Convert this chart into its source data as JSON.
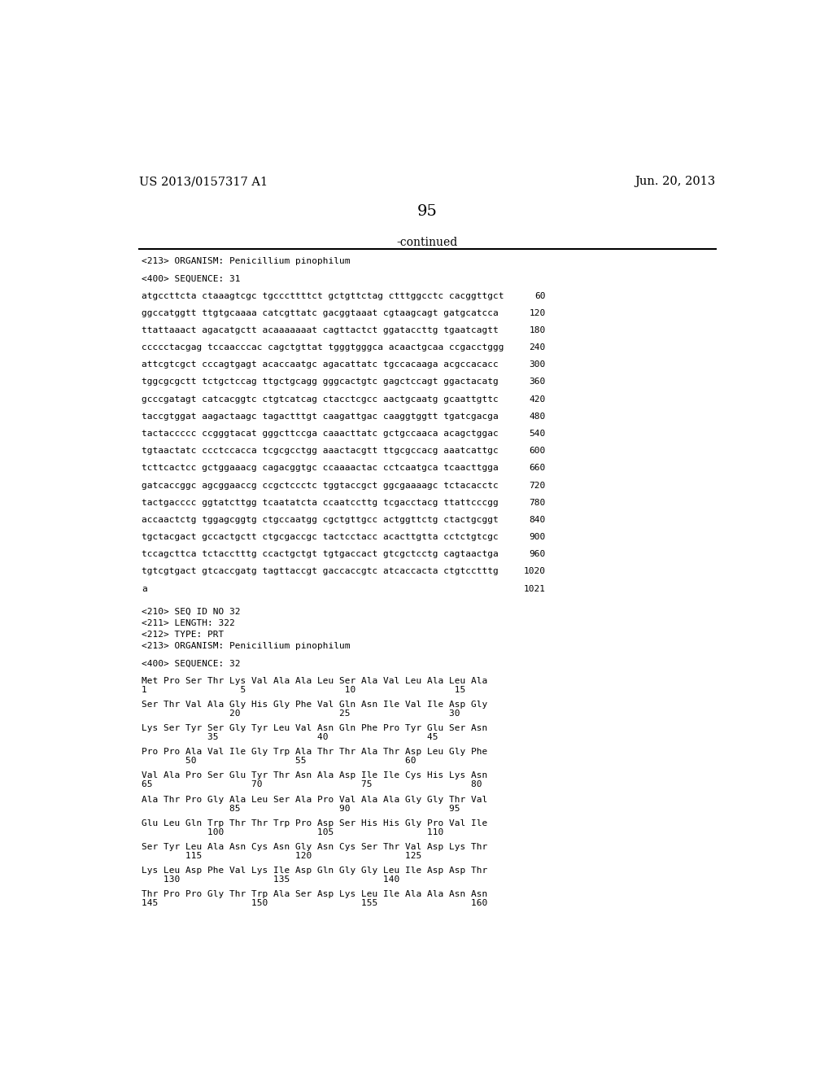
{
  "header_left": "US 2013/0157317 A1",
  "header_right": "Jun. 20, 2013",
  "page_number": "95",
  "continued_text": "-continued",
  "bg_color": "#ffffff",
  "text_color": "#000000",
  "sections": [
    {
      "type": "label",
      "text": "<213> ORGANISM: Penicillium pinophilum"
    },
    {
      "type": "blank"
    },
    {
      "type": "label",
      "text": "<400> SEQUENCE: 31"
    },
    {
      "type": "blank"
    },
    {
      "type": "seq_line",
      "seq": "atgccttcta ctaaagtcgc tgcccttttct gctgttctag ctttggcctc cacggttgct",
      "num": "60"
    },
    {
      "type": "blank"
    },
    {
      "type": "seq_line",
      "seq": "ggccatggtt ttgtgcaaaa catcgttatc gacggtaaat cgtaagcagt gatgcatcca",
      "num": "120"
    },
    {
      "type": "blank"
    },
    {
      "type": "seq_line",
      "seq": "ttattaaact agacatgctt acaaaaaaat cagttactct ggataccttg tgaatcagtt",
      "num": "180"
    },
    {
      "type": "blank"
    },
    {
      "type": "seq_line",
      "seq": "ccccctacgag tccaacccac cagctgttat tgggtgggca acaactgcaa ccgacctggg",
      "num": "240"
    },
    {
      "type": "blank"
    },
    {
      "type": "seq_line",
      "seq": "attcgtcgct cccagtgagt acaccaatgc agacattatc tgccacaaga acgccacacc",
      "num": "300"
    },
    {
      "type": "blank"
    },
    {
      "type": "seq_line",
      "seq": "tggcgcgctt tctgctccag ttgctgcagg gggcactgtc gagctccagt ggactacatg",
      "num": "360"
    },
    {
      "type": "blank"
    },
    {
      "type": "seq_line",
      "seq": "gcccgatagt catcacggtc ctgtcatcag ctacctcgcc aactgcaatg gcaattgttc",
      "num": "420"
    },
    {
      "type": "blank"
    },
    {
      "type": "seq_line",
      "seq": "taccgtggat aagactaagc tagactttgt caagattgac caaggtggtt tgatcgacga",
      "num": "480"
    },
    {
      "type": "blank"
    },
    {
      "type": "seq_line",
      "seq": "tactaccccc ccgggtacat gggcttccga caaacttatc gctgccaaca acagctggac",
      "num": "540"
    },
    {
      "type": "blank"
    },
    {
      "type": "seq_line",
      "seq": "tgtaactatc ccctccacca tcgcgcctgg aaactacgtt ttgcgccacg aaatcattgc",
      "num": "600"
    },
    {
      "type": "blank"
    },
    {
      "type": "seq_line",
      "seq": "tcttcactcc gctggaaacg cagacggtgc ccaaaactac cctcaatgca tcaacttgga",
      "num": "660"
    },
    {
      "type": "blank"
    },
    {
      "type": "seq_line",
      "seq": "gatcaccggc agcggaaccg ccgctccctc tggtaccgct ggcgaaaagc tctacacctc",
      "num": "720"
    },
    {
      "type": "blank"
    },
    {
      "type": "seq_line",
      "seq": "tactgacccc ggtatcttgg tcaatatcta ccaatccttg tcgacctacg ttattcccgg",
      "num": "780"
    },
    {
      "type": "blank"
    },
    {
      "type": "seq_line",
      "seq": "accaactctg tggagcggtg ctgccaatgg cgctgttgcc actggttctg ctactgcggt",
      "num": "840"
    },
    {
      "type": "blank"
    },
    {
      "type": "seq_line",
      "seq": "tgctacgact gccactgctt ctgcgaccgc tactcctacc acacttgtta cctctgtcgc",
      "num": "900"
    },
    {
      "type": "blank"
    },
    {
      "type": "seq_line",
      "seq": "tccagcttca tctacctttg ccactgctgt tgtgaccact gtcgctcctg cagtaactga",
      "num": "960"
    },
    {
      "type": "blank"
    },
    {
      "type": "seq_line",
      "seq": "tgtcgtgact gtcaccgatg tagttaccgt gaccaccgtc atcaccacta ctgtcctttg",
      "num": "1020"
    },
    {
      "type": "blank"
    },
    {
      "type": "seq_line",
      "seq": "a",
      "num": "1021"
    },
    {
      "type": "blank"
    },
    {
      "type": "blank"
    },
    {
      "type": "label",
      "text": "<210> SEQ ID NO 32"
    },
    {
      "type": "label",
      "text": "<211> LENGTH: 322"
    },
    {
      "type": "label",
      "text": "<212> TYPE: PRT"
    },
    {
      "type": "label",
      "text": "<213> ORGANISM: Penicillium pinophilum"
    },
    {
      "type": "blank"
    },
    {
      "type": "label",
      "text": "<400> SEQUENCE: 32"
    },
    {
      "type": "blank"
    },
    {
      "type": "prt_seq",
      "line1": "Met Pro Ser Thr Lys Val Ala Ala Leu Ser Ala Val Leu Ala Leu Ala",
      "line2": "1                 5                  10                  15"
    },
    {
      "type": "blank"
    },
    {
      "type": "prt_seq",
      "line1": "Ser Thr Val Ala Gly His Gly Phe Val Gln Asn Ile Val Ile Asp Gly",
      "line2": "                20                  25                  30"
    },
    {
      "type": "blank"
    },
    {
      "type": "prt_seq",
      "line1": "Lys Ser Tyr Ser Gly Tyr Leu Val Asn Gln Phe Pro Tyr Glu Ser Asn",
      "line2": "            35                  40                  45"
    },
    {
      "type": "blank"
    },
    {
      "type": "prt_seq",
      "line1": "Pro Pro Ala Val Ile Gly Trp Ala Thr Thr Ala Thr Asp Leu Gly Phe",
      "line2": "        50                  55                  60"
    },
    {
      "type": "blank"
    },
    {
      "type": "prt_seq",
      "line1": "Val Ala Pro Ser Glu Tyr Thr Asn Ala Asp Ile Ile Cys His Lys Asn",
      "line2": "65                  70                  75                  80"
    },
    {
      "type": "blank"
    },
    {
      "type": "prt_seq",
      "line1": "Ala Thr Pro Gly Ala Leu Ser Ala Pro Val Ala Ala Gly Gly Thr Val",
      "line2": "                85                  90                  95"
    },
    {
      "type": "blank"
    },
    {
      "type": "prt_seq",
      "line1": "Glu Leu Gln Trp Thr Thr Trp Pro Asp Ser His His Gly Pro Val Ile",
      "line2": "            100                 105                 110"
    },
    {
      "type": "blank"
    },
    {
      "type": "prt_seq",
      "line1": "Ser Tyr Leu Ala Asn Cys Asn Gly Asn Cys Ser Thr Val Asp Lys Thr",
      "line2": "        115                 120                 125"
    },
    {
      "type": "blank"
    },
    {
      "type": "prt_seq",
      "line1": "Lys Leu Asp Phe Val Lys Ile Asp Gln Gly Gly Leu Ile Asp Asp Thr",
      "line2": "    130                 135                 140"
    },
    {
      "type": "blank"
    },
    {
      "type": "prt_seq",
      "line1": "Thr Pro Pro Gly Thr Trp Ala Ser Asp Lys Leu Ile Ala Ala Asn Asn",
      "line2": "145                 150                 155                 160"
    }
  ]
}
